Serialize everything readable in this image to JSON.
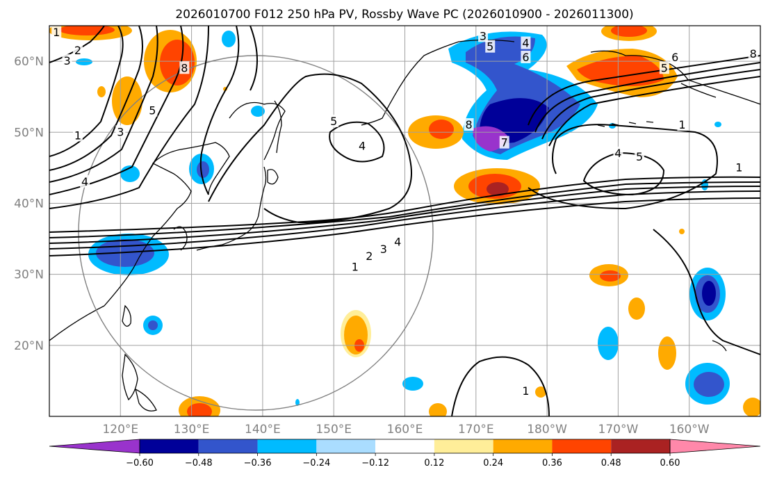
{
  "title": "2026010700 F012 250 hPa PV, Rossby Wave PC (2026010900 - 2026011300)",
  "map": {
    "projection": "PlateCarree",
    "lon_range": [
      110,
      210
    ],
    "lat_range": [
      10,
      65
    ],
    "grid": true,
    "lat_ticks": [
      {
        "lat": 60,
        "label": "60°N"
      },
      {
        "lat": 50,
        "label": "50°N"
      },
      {
        "lat": 40,
        "label": "40°N"
      },
      {
        "lat": 30,
        "label": "30°N"
      },
      {
        "lat": 20,
        "label": "20°N"
      }
    ],
    "lon_ticks": [
      {
        "lon": 120,
        "label": "120°E"
      },
      {
        "lon": 130,
        "label": "130°E"
      },
      {
        "lon": 140,
        "label": "140°E"
      },
      {
        "lon": 150,
        "label": "150°E"
      },
      {
        "lon": 160,
        "label": "160°E"
      },
      {
        "lon": 170,
        "label": "170°E"
      },
      {
        "lon": 180,
        "label": "180°W"
      },
      {
        "lon": 190,
        "label": "170°W"
      },
      {
        "lon": 200,
        "label": "160°W"
      }
    ],
    "reference_circle": {
      "center_lon": 139,
      "center_lat": 35,
      "radius_deg": 25,
      "color": "#808080"
    }
  },
  "colorbar": {
    "labels": [
      "−0.60",
      "−0.48",
      "−0.36",
      "−0.24",
      "−0.12",
      "0.12",
      "0.24",
      "0.36",
      "0.48",
      "0.60"
    ],
    "colors": [
      "#9933cc",
      "#000099",
      "#3355cc",
      "#00bbff",
      "#aaddff",
      "#ffffff",
      "#ffee99",
      "#ffaa00",
      "#ff4400",
      "#aa2222",
      "#ff88aa"
    ]
  },
  "pv_contour_labels": [
    {
      "lon": 111,
      "lat": 64,
      "text": "1"
    },
    {
      "lon": 114,
      "lat": 61.5,
      "text": "2"
    },
    {
      "lon": 112.5,
      "lat": 60,
      "text": "3"
    },
    {
      "lon": 114,
      "lat": 49.5,
      "text": "1"
    },
    {
      "lon": 120,
      "lat": 50,
      "text": "3"
    },
    {
      "lon": 124.5,
      "lat": 53,
      "text": "5"
    },
    {
      "lon": 115,
      "lat": 43,
      "text": "4"
    },
    {
      "lon": 129,
      "lat": 59,
      "text": "8"
    },
    {
      "lon": 150,
      "lat": 51.5,
      "text": "5"
    },
    {
      "lon": 154,
      "lat": 48,
      "text": "4"
    },
    {
      "lon": 171,
      "lat": 63.5,
      "text": "3"
    },
    {
      "lon": 172,
      "lat": 62,
      "text": "5"
    },
    {
      "lon": 177,
      "lat": 62.5,
      "text": "4"
    },
    {
      "lon": 177,
      "lat": 60.5,
      "text": "6"
    },
    {
      "lon": 169,
      "lat": 51,
      "text": "8"
    },
    {
      "lon": 174,
      "lat": 48.5,
      "text": "7"
    },
    {
      "lon": 198,
      "lat": 60.5,
      "text": "6"
    },
    {
      "lon": 196.5,
      "lat": 59,
      "text": "5"
    },
    {
      "lon": 209,
      "lat": 61,
      "text": "8"
    },
    {
      "lon": 199,
      "lat": 51,
      "text": "1"
    },
    {
      "lon": 190,
      "lat": 47,
      "text": "4"
    },
    {
      "lon": 193,
      "lat": 46.5,
      "text": "5"
    },
    {
      "lon": 207,
      "lat": 45,
      "text": "1"
    },
    {
      "lon": 159,
      "lat": 34.5,
      "text": "4"
    },
    {
      "lon": 157,
      "lat": 33.5,
      "text": "3"
    },
    {
      "lon": 155,
      "lat": 32.5,
      "text": "2"
    },
    {
      "lon": 153,
      "lat": 31,
      "text": "1"
    },
    {
      "lon": 177,
      "lat": 13.5,
      "text": "1"
    }
  ]
}
